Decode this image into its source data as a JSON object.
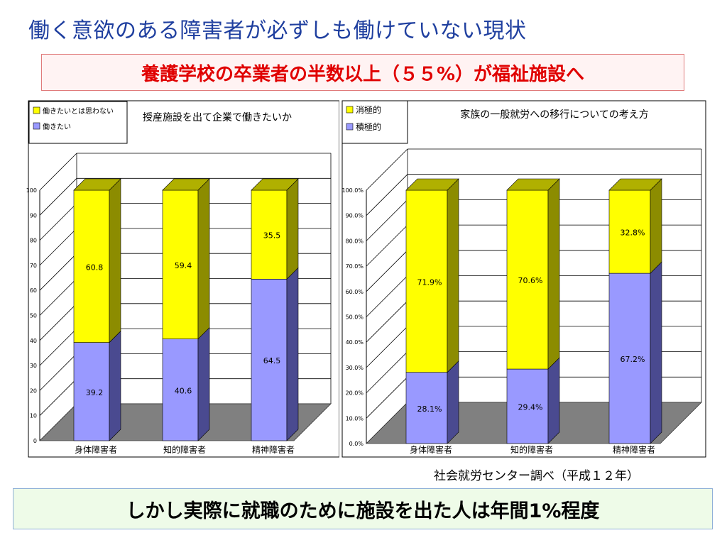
{
  "slide": {
    "title": "働く意欲のある障害者が必ずしも働けていない現状",
    "highlight": "養護学校の卒業者の半数以上（５５%）が福祉施設へ",
    "source": "社会就労センター調べ（平成１２年）",
    "conclusion": "しかし実際に就職のために施設を出た人は年間1%程度"
  },
  "colors": {
    "yellow": "#ffff00",
    "blue": "#9999ff",
    "floor": "#808080"
  },
  "chart_data": [
    {
      "type": "bar",
      "stacked": true,
      "title": "授産施設を出て企業で働きたいか",
      "categories": [
        "身体障害者",
        "知的障害者",
        "精神障害者"
      ],
      "series": [
        {
          "name": "働きたいとは思わない",
          "values": [
            60.8,
            59.4,
            35.5
          ],
          "color": "yellow"
        },
        {
          "name": "働きたい",
          "values": [
            39.2,
            40.6,
            64.5
          ],
          "color": "blue"
        }
      ],
      "value_labels": {
        "働きたいとは思わない": [
          "60.8",
          "59.4",
          "35.5"
        ],
        "働きたい": [
          "39.2",
          "40.6",
          "64.5"
        ]
      },
      "ylim": [
        0,
        100
      ],
      "yticks": [
        "0",
        "10",
        "20",
        "30",
        "40",
        "50",
        "60",
        "70",
        "80",
        "90",
        "100"
      ],
      "legend_position": "top-left",
      "grid": true
    },
    {
      "type": "bar",
      "stacked": true,
      "title": "家族の一般就労への移行についての考え方",
      "categories": [
        "身体障害者",
        "知的障害者",
        "精神障害者"
      ],
      "series": [
        {
          "name": "消極的",
          "values": [
            71.9,
            70.6,
            32.8
          ],
          "color": "yellow"
        },
        {
          "name": "積極的",
          "values": [
            28.1,
            29.4,
            67.2
          ],
          "color": "blue"
        }
      ],
      "value_labels": {
        "消極的": [
          "71.9%",
          "70.6%",
          "32.8%"
        ],
        "積極的": [
          "28.1%",
          "29.4%",
          "67.2%"
        ]
      },
      "ylim": [
        0,
        100
      ],
      "yticks": [
        "0.0%",
        "10.0%",
        "20.0%",
        "30.0%",
        "40.0%",
        "50.0%",
        "60.0%",
        "70.0%",
        "80.0%",
        "90.0%",
        "100.0%"
      ],
      "legend_position": "top-left",
      "grid": true
    }
  ]
}
